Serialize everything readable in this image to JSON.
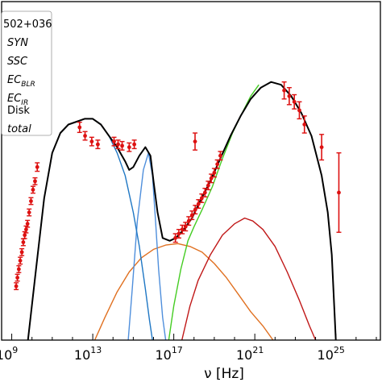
{
  "chart_data": {
    "type": "scatter",
    "title": "",
    "xlabel": "ν [Hz]",
    "ylabel": "",
    "x_scale": "log",
    "x_range_log10_hz": [
      8.5,
      27.2
    ],
    "y_range": [
      0,
      1
    ],
    "y_units_note": "",
    "xticks": [
      {
        "base": "10",
        "exp": "9",
        "log10": 9
      },
      {
        "base": "10",
        "exp": "13",
        "log10": 13
      },
      {
        "base": "10",
        "exp": "17",
        "log10": 17
      },
      {
        "base": "10",
        "exp": "21",
        "log10": 21
      },
      {
        "base": "10",
        "exp": "25",
        "log10": 25
      }
    ],
    "grid": false,
    "legend_placement": "top-left",
    "legend": {
      "source_label": "502+036",
      "entries": [
        {
          "label": "SYN",
          "sub": "",
          "italic": true
        },
        {
          "label": "SSC",
          "sub": "",
          "italic": true
        },
        {
          "label": "EC",
          "sub": "BLR",
          "italic": true
        },
        {
          "label": "EC",
          "sub": "IR",
          "italic": true
        },
        {
          "label": "Disk",
          "sub": "",
          "italic": false
        },
        {
          "label": "total",
          "sub": "",
          "italic": true
        }
      ]
    },
    "colors": {
      "total": "#000000",
      "syn": "#1f77c4",
      "disk": "#4f8fdc",
      "ssc": "#e07020",
      "ec_blr": "#c01818",
      "ec_ir": "#44cc22",
      "data": "#dd1111"
    },
    "series": [
      {
        "name": "total",
        "points": [
          [
            9.8,
            0.0
          ],
          [
            10.2,
            0.25
          ],
          [
            10.6,
            0.5
          ],
          [
            11.0,
            0.66
          ],
          [
            11.4,
            0.73
          ],
          [
            11.8,
            0.76
          ],
          [
            12.2,
            0.77
          ],
          [
            12.6,
            0.78
          ],
          [
            13.0,
            0.78
          ],
          [
            13.4,
            0.76
          ],
          [
            13.8,
            0.72
          ],
          [
            14.2,
            0.68
          ],
          [
            14.6,
            0.63
          ],
          [
            14.8,
            0.6
          ],
          [
            15.0,
            0.61
          ],
          [
            15.3,
            0.65
          ],
          [
            15.6,
            0.68
          ],
          [
            15.85,
            0.65
          ],
          [
            16.0,
            0.56
          ],
          [
            16.2,
            0.45
          ],
          [
            16.45,
            0.36
          ],
          [
            16.8,
            0.35
          ],
          [
            17.1,
            0.36
          ],
          [
            17.5,
            0.39
          ],
          [
            17.9,
            0.43
          ],
          [
            18.3,
            0.49
          ],
          [
            18.8,
            0.56
          ],
          [
            19.3,
            0.64
          ],
          [
            19.8,
            0.72
          ],
          [
            20.3,
            0.79
          ],
          [
            20.8,
            0.85
          ],
          [
            21.3,
            0.89
          ],
          [
            21.8,
            0.91
          ],
          [
            22.3,
            0.9
          ],
          [
            22.8,
            0.86
          ],
          [
            23.3,
            0.8
          ],
          [
            23.8,
            0.72
          ],
          [
            24.3,
            0.58
          ],
          [
            24.6,
            0.45
          ],
          [
            24.8,
            0.3
          ],
          [
            24.92,
            0.12
          ],
          [
            25.0,
            0.0
          ]
        ]
      },
      {
        "name": "SYN",
        "points": [
          [
            9.8,
            0.0
          ],
          [
            10.2,
            0.25
          ],
          [
            10.6,
            0.5
          ],
          [
            11.0,
            0.66
          ],
          [
            11.4,
            0.73
          ],
          [
            11.8,
            0.76
          ],
          [
            12.2,
            0.77
          ],
          [
            12.6,
            0.78
          ],
          [
            13.0,
            0.78
          ],
          [
            13.4,
            0.76
          ],
          [
            13.8,
            0.72
          ],
          [
            14.2,
            0.66
          ],
          [
            14.6,
            0.58
          ],
          [
            15.0,
            0.45
          ],
          [
            15.3,
            0.33
          ],
          [
            15.6,
            0.18
          ],
          [
            15.8,
            0.07
          ],
          [
            15.95,
            0.0
          ]
        ]
      },
      {
        "name": "Disk",
        "points": [
          [
            14.75,
            0.0
          ],
          [
            14.95,
            0.18
          ],
          [
            15.2,
            0.42
          ],
          [
            15.5,
            0.6
          ],
          [
            15.75,
            0.66
          ],
          [
            15.95,
            0.58
          ],
          [
            16.1,
            0.42
          ],
          [
            16.25,
            0.25
          ],
          [
            16.45,
            0.08
          ],
          [
            16.6,
            0.0
          ]
        ]
      },
      {
        "name": "SSC",
        "points": [
          [
            13.1,
            0.0
          ],
          [
            13.6,
            0.08
          ],
          [
            14.2,
            0.17
          ],
          [
            14.8,
            0.24
          ],
          [
            15.4,
            0.29
          ],
          [
            16.0,
            0.32
          ],
          [
            16.6,
            0.335
          ],
          [
            17.2,
            0.34
          ],
          [
            17.8,
            0.33
          ],
          [
            18.4,
            0.31
          ],
          [
            19.0,
            0.27
          ],
          [
            19.6,
            0.22
          ],
          [
            20.2,
            0.16
          ],
          [
            20.8,
            0.1
          ],
          [
            21.4,
            0.05
          ],
          [
            21.9,
            0.0
          ]
        ]
      },
      {
        "name": "ECBLR",
        "points": [
          [
            17.4,
            0.0
          ],
          [
            17.8,
            0.12
          ],
          [
            18.2,
            0.21
          ],
          [
            18.8,
            0.3
          ],
          [
            19.4,
            0.37
          ],
          [
            20.0,
            0.41
          ],
          [
            20.5,
            0.43
          ],
          [
            20.9,
            0.42
          ],
          [
            21.4,
            0.39
          ],
          [
            22.0,
            0.33
          ],
          [
            22.6,
            0.24
          ],
          [
            23.2,
            0.14
          ],
          [
            23.7,
            0.05
          ],
          [
            24.0,
            0.0
          ]
        ]
      },
      {
        "name": "ECIR",
        "points": [
          [
            16.75,
            0.0
          ],
          [
            17.0,
            0.12
          ],
          [
            17.35,
            0.25
          ],
          [
            17.7,
            0.35
          ],
          [
            18.0,
            0.4
          ],
          [
            18.4,
            0.46
          ],
          [
            18.9,
            0.54
          ],
          [
            19.4,
            0.64
          ],
          [
            19.9,
            0.73
          ],
          [
            20.3,
            0.79
          ],
          [
            20.8,
            0.86
          ],
          [
            21.2,
            0.9
          ]
        ]
      }
    ],
    "data_points": [
      [
        9.22,
        0.19,
        0.012
      ],
      [
        9.28,
        0.22,
        0.012
      ],
      [
        9.35,
        0.25,
        0.012
      ],
      [
        9.42,
        0.28,
        0.012
      ],
      [
        9.5,
        0.31,
        0.012
      ],
      [
        9.57,
        0.345,
        0.012
      ],
      [
        9.64,
        0.37,
        0.012
      ],
      [
        9.71,
        0.39,
        0.012
      ],
      [
        9.78,
        0.41,
        0.012
      ],
      [
        9.86,
        0.45,
        0.012
      ],
      [
        9.95,
        0.49,
        0.012
      ],
      [
        10.05,
        0.53,
        0.012
      ],
      [
        10.15,
        0.56,
        0.012
      ],
      [
        10.26,
        0.61,
        0.015
      ],
      [
        12.35,
        0.75,
        0.018
      ],
      [
        12.62,
        0.72,
        0.015
      ],
      [
        12.95,
        0.7,
        0.015
      ],
      [
        13.25,
        0.69,
        0.015
      ],
      [
        14.05,
        0.7,
        0.015
      ],
      [
        14.25,
        0.69,
        0.015
      ],
      [
        14.45,
        0.685,
        0.015
      ],
      [
        14.8,
        0.68,
        0.015
      ],
      [
        15.05,
        0.69,
        0.015
      ],
      [
        17.08,
        0.36,
        0.015
      ],
      [
        17.25,
        0.375,
        0.015
      ],
      [
        17.42,
        0.39,
        0.015
      ],
      [
        17.58,
        0.4,
        0.015
      ],
      [
        17.74,
        0.42,
        0.015
      ],
      [
        17.9,
        0.44,
        0.015
      ],
      [
        18.06,
        0.46,
        0.015
      ],
      [
        18.22,
        0.48,
        0.015
      ],
      [
        18.38,
        0.5,
        0.015
      ],
      [
        18.54,
        0.52,
        0.015
      ],
      [
        18.7,
        0.545,
        0.015
      ],
      [
        18.85,
        0.57,
        0.015
      ],
      [
        19.0,
        0.59,
        0.015
      ],
      [
        19.15,
        0.62,
        0.015
      ],
      [
        19.3,
        0.65,
        0.015
      ],
      [
        18.05,
        0.7,
        0.03
      ],
      [
        22.45,
        0.88,
        0.03
      ],
      [
        22.7,
        0.86,
        0.03
      ],
      [
        22.95,
        0.84,
        0.025
      ],
      [
        23.2,
        0.81,
        0.03
      ],
      [
        23.45,
        0.76,
        0.03
      ],
      [
        24.3,
        0.68,
        0.045
      ],
      [
        25.15,
        0.52,
        0.14
      ]
    ]
  }
}
